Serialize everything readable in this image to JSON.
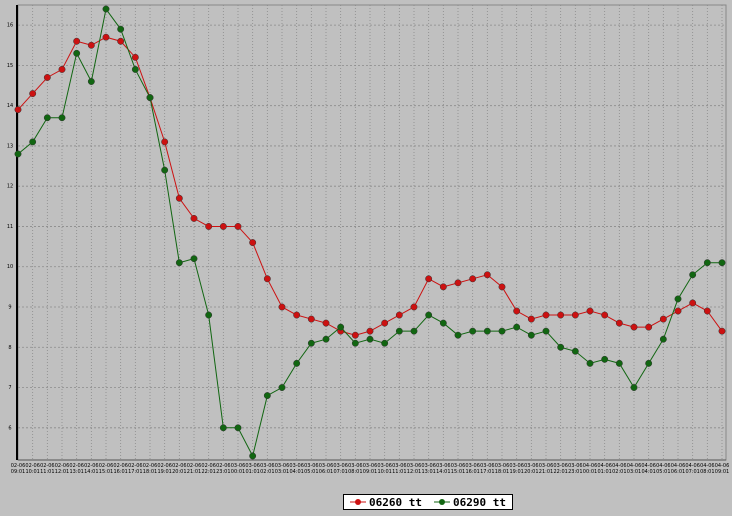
{
  "chart_data": {
    "type": "line",
    "categories": [
      "02-06 09:01",
      "02-06 10:01",
      "02-06 11:01",
      "02-06 12:01",
      "02-06 13:01",
      "02-06 14:01",
      "02-06 15:01",
      "02-06 16:01",
      "02-06 17:01",
      "02-06 18:01",
      "02-06 19:01",
      "02-06 20:01",
      "02-06 21:01",
      "02-06 22:01",
      "02-06 23:01",
      "03-06 00:01",
      "03-06 01:01",
      "03-06 02:01",
      "03-06 03:01",
      "03-06 04:01",
      "03-06 05:01",
      "03-06 06:01",
      "03-06 07:01",
      "03-06 08:01",
      "03-06 09:01",
      "03-06 10:01",
      "03-06 11:01",
      "03-06 12:01",
      "03-06 13:01",
      "03-06 14:01",
      "03-06 15:01",
      "03-06 16:01",
      "03-06 17:01",
      "03-06 18:01",
      "03-06 19:01",
      "03-06 20:01",
      "03-06 21:01",
      "03-06 22:01",
      "03-06 23:01",
      "04-06 00:01",
      "04-06 01:01",
      "04-06 02:01",
      "04-06 03:01",
      "04-06 04:01",
      "04-06 05:01",
      "04-06 06:01",
      "04-06 07:01",
      "04-06 08:01",
      "04-06 09:01"
    ],
    "series": [
      {
        "name": "06260 tt",
        "color": "#cc1111",
        "values": [
          13.9,
          14.3,
          14.7,
          14.9,
          15.6,
          15.5,
          15.7,
          15.6,
          15.2,
          14.2,
          13.1,
          11.7,
          11.2,
          11.0,
          11.0,
          11.0,
          10.6,
          9.7,
          9.0,
          8.8,
          8.7,
          8.6,
          8.4,
          8.3,
          8.4,
          8.6,
          8.8,
          9.0,
          9.7,
          9.5,
          9.6,
          9.7,
          9.8,
          9.5,
          8.9,
          8.7,
          8.8,
          8.8,
          8.8,
          8.9,
          8.8,
          8.6,
          8.5,
          8.5,
          8.7,
          8.9,
          9.1,
          8.9,
          8.4
        ]
      },
      {
        "name": "06290 tt",
        "color": "#116611",
        "values": [
          12.8,
          13.1,
          13.7,
          13.7,
          15.3,
          14.6,
          16.4,
          15.9,
          14.9,
          14.2,
          12.4,
          10.1,
          10.2,
          8.8,
          6.0,
          6.0,
          5.3,
          6.8,
          7.0,
          7.6,
          8.1,
          8.2,
          8.5,
          8.1,
          8.2,
          8.1,
          8.4,
          8.4,
          8.8,
          8.6,
          8.3,
          8.4,
          8.4,
          8.4,
          8.5,
          8.3,
          8.4,
          8.0,
          7.9,
          7.6,
          7.7,
          7.6,
          7.0,
          7.6,
          8.2,
          9.2,
          9.8,
          10.1,
          10.1
        ]
      }
    ],
    "ylim": [
      5.2,
      16.5
    ],
    "yticks": [
      6,
      7,
      8,
      9,
      10,
      11,
      12,
      13,
      14,
      15,
      16
    ],
    "grid": true
  }
}
